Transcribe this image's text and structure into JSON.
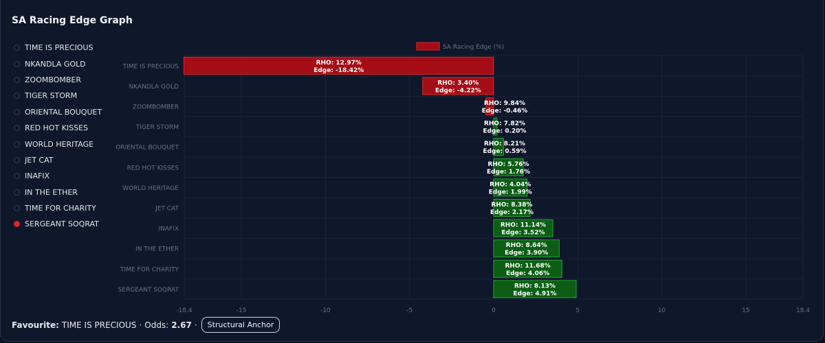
{
  "title": "SA Racing Edge Graph",
  "selected_horse": "SERGEANT SOQRAT",
  "footer": {
    "favourite_label": "Favourite:",
    "favourite_value": "TIME IS PRECIOUS",
    "sep1": "·",
    "odds_label": "Odds:",
    "odds_value": "2.67",
    "sep2": "·",
    "button_label": "Structural Anchor"
  },
  "colors": {
    "negative_fill": "#a50d16",
    "negative_stroke": "#d7262f",
    "positive_fill": "#0b5e14",
    "positive_stroke": "#27a532",
    "selected_dot": "#dc2626"
  },
  "chart_data": {
    "type": "bar",
    "orientation": "horizontal",
    "series_name": "SA Racing Edge (%)",
    "categories": [
      "TIME IS PRECIOUS",
      "NKANDLA GOLD",
      "ZOOMBOMBER",
      "TIGER STORM",
      "ORIENTAL BOUQUET",
      "RED HOT KISSES",
      "WORLD HERITAGE",
      "JET CAT",
      "INAFIX",
      "IN THE ETHER",
      "TIME FOR CHARITY",
      "SERGEANT SOQRAT"
    ],
    "values": [
      -18.42,
      -4.22,
      -0.46,
      0.2,
      0.59,
      1.76,
      1.99,
      2.17,
      3.52,
      3.9,
      4.06,
      4.91
    ],
    "rho": [
      12.97,
      3.4,
      9.84,
      7.82,
      8.21,
      5.76,
      4.04,
      8.38,
      11.14,
      8.64,
      11.68,
      8.13
    ],
    "labels_rho": [
      "RHO: 12.97%",
      "RHO: 3.40%",
      "RHO: 9.84%",
      "RHO: 7.82%",
      "RHO: 8.21%",
      "RHO: 5.76%",
      "RHO: 4.04%",
      "RHO: 8.38%",
      "RHO: 11.14%",
      "RHO: 8.64%",
      "RHO: 11.68%",
      "RHO: 8.13%"
    ],
    "labels_edge": [
      "Edge: -18.42%",
      "Edge: -4.22%",
      "Edge: -0.46%",
      "Edge: 0.20%",
      "Edge: 0.59%",
      "Edge: 1.76%",
      "Edge: 1.99%",
      "Edge: 2.17%",
      "Edge: 3.52%",
      "Edge: 3.90%",
      "Edge: 4.06%",
      "Edge: 4.91%"
    ],
    "xlim": [
      -18.4,
      18.4
    ],
    "xticks": [
      -18.4,
      -15,
      -10,
      -5,
      0,
      5,
      10,
      15,
      18.4
    ],
    "xtick_labels": [
      "-18.4",
      "-15",
      "-10",
      "-5",
      "0",
      "5",
      "10",
      "15",
      "18.4"
    ],
    "legend_position": "top-center",
    "grid": true
  }
}
